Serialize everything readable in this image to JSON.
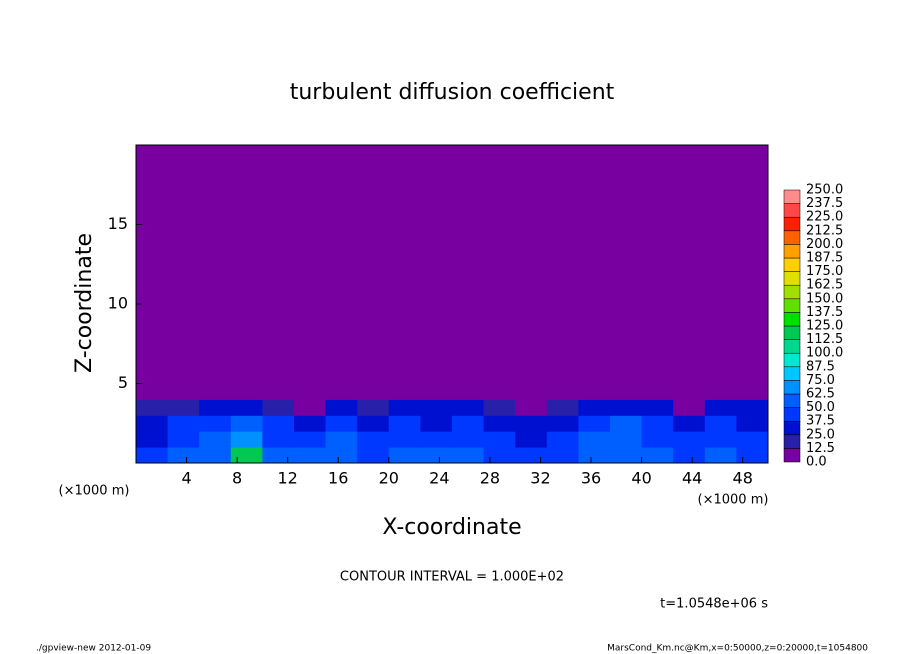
{
  "chart_data": {
    "type": "heatmap",
    "title": "turbulent diffusion coefficient",
    "x_label": "X-coordinate",
    "y_label": "Z-coordinate",
    "x_unit": "(×1000 m)",
    "y_unit": "(×1000 m)",
    "xlim": [
      0,
      50
    ],
    "ylim": [
      0,
      20
    ],
    "xticks": [
      4,
      8,
      12,
      16,
      20,
      24,
      28,
      32,
      36,
      40,
      44,
      48
    ],
    "yticks": [
      5,
      10,
      15
    ],
    "x_edges": [
      0,
      2.5,
      5,
      7.5,
      10,
      12.5,
      15,
      17.5,
      20,
      22.5,
      25,
      27.5,
      30,
      32.5,
      35,
      37.5,
      40,
      42.5,
      45,
      47.5,
      50
    ],
    "z_edges": [
      0,
      1,
      2,
      3,
      4,
      20
    ],
    "values": [
      [
        40,
        50,
        55,
        120,
        60,
        50,
        55,
        45,
        50,
        55,
        50,
        45,
        40,
        45,
        55,
        60,
        50,
        45,
        50,
        45
      ],
      [
        35,
        45,
        50,
        70,
        45,
        40,
        50,
        40,
        45,
        40,
        45,
        40,
        35,
        40,
        50,
        55,
        45,
        40,
        45,
        40
      ],
      [
        30,
        40,
        45,
        60,
        40,
        35,
        45,
        35,
        40,
        35,
        40,
        30,
        25,
        35,
        45,
        50,
        40,
        35,
        40,
        35
      ],
      [
        20,
        20,
        35,
        30,
        15,
        10,
        35,
        20,
        25,
        25,
        35,
        20,
        10,
        15,
        30,
        35,
        25,
        10,
        30,
        25
      ],
      [
        0,
        0,
        0,
        0,
        0,
        0,
        0,
        0,
        0,
        0,
        0,
        0,
        0,
        0,
        0,
        0,
        0,
        0,
        0,
        0
      ]
    ],
    "colorbar": {
      "levels": [
        {
          "value": 0,
          "label": "0.0"
        },
        {
          "value": 12.5,
          "label": "12.5"
        },
        {
          "value": 25,
          "label": "25.0"
        },
        {
          "value": 37.5,
          "label": "37.5"
        },
        {
          "value": 50,
          "label": "50.0"
        },
        {
          "value": 62.5,
          "label": "62.5"
        },
        {
          "value": 75,
          "label": "75.0"
        },
        {
          "value": 87.5,
          "label": "87.5"
        },
        {
          "value": 100,
          "label": "100.0"
        },
        {
          "value": 112.5,
          "label": "112.5"
        },
        {
          "value": 125,
          "label": "125.0"
        },
        {
          "value": 137.5,
          "label": "137.5"
        },
        {
          "value": 150,
          "label": "150.0"
        },
        {
          "value": 162.5,
          "label": "162.5"
        },
        {
          "value": 175,
          "label": "175.0"
        },
        {
          "value": 187.5,
          "label": "187.5"
        },
        {
          "value": 200,
          "label": "200.0"
        },
        {
          "value": 212.5,
          "label": "212.5"
        },
        {
          "value": 225,
          "label": "225.0"
        },
        {
          "value": 237.5,
          "label": "237.5"
        },
        {
          "value": 250,
          "label": "250.0"
        }
      ],
      "colors": [
        "#7800a0",
        "#2820a8",
        "#0010d0",
        "#0038ff",
        "#0060ff",
        "#0090ff",
        "#00c8ff",
        "#00e8d0",
        "#00d890",
        "#00c850",
        "#00e000",
        "#60e000",
        "#a0e000",
        "#e0e000",
        "#ffd000",
        "#ffa000",
        "#ff6000",
        "#ff2000",
        "#ff4848",
        "#ff8c8c"
      ]
    },
    "contour_note": "CONTOUR INTERVAL = 1.000E+02",
    "time_label": "t=1.0548e+06 s",
    "footer_left": "./gpview-new  2012-01-09",
    "footer_right": "MarsCond_Km.nc@Km,x=0:50000,z=0:20000,t=1054800"
  }
}
